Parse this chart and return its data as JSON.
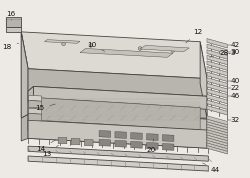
{
  "bg_color": "#edeae5",
  "line_color": "#444444",
  "lw_main": 0.6,
  "lw_thin": 0.35,
  "figsize": [
    2.5,
    1.78
  ],
  "dpi": 100,
  "label_fs": 5.2,
  "label_color": "#111111"
}
